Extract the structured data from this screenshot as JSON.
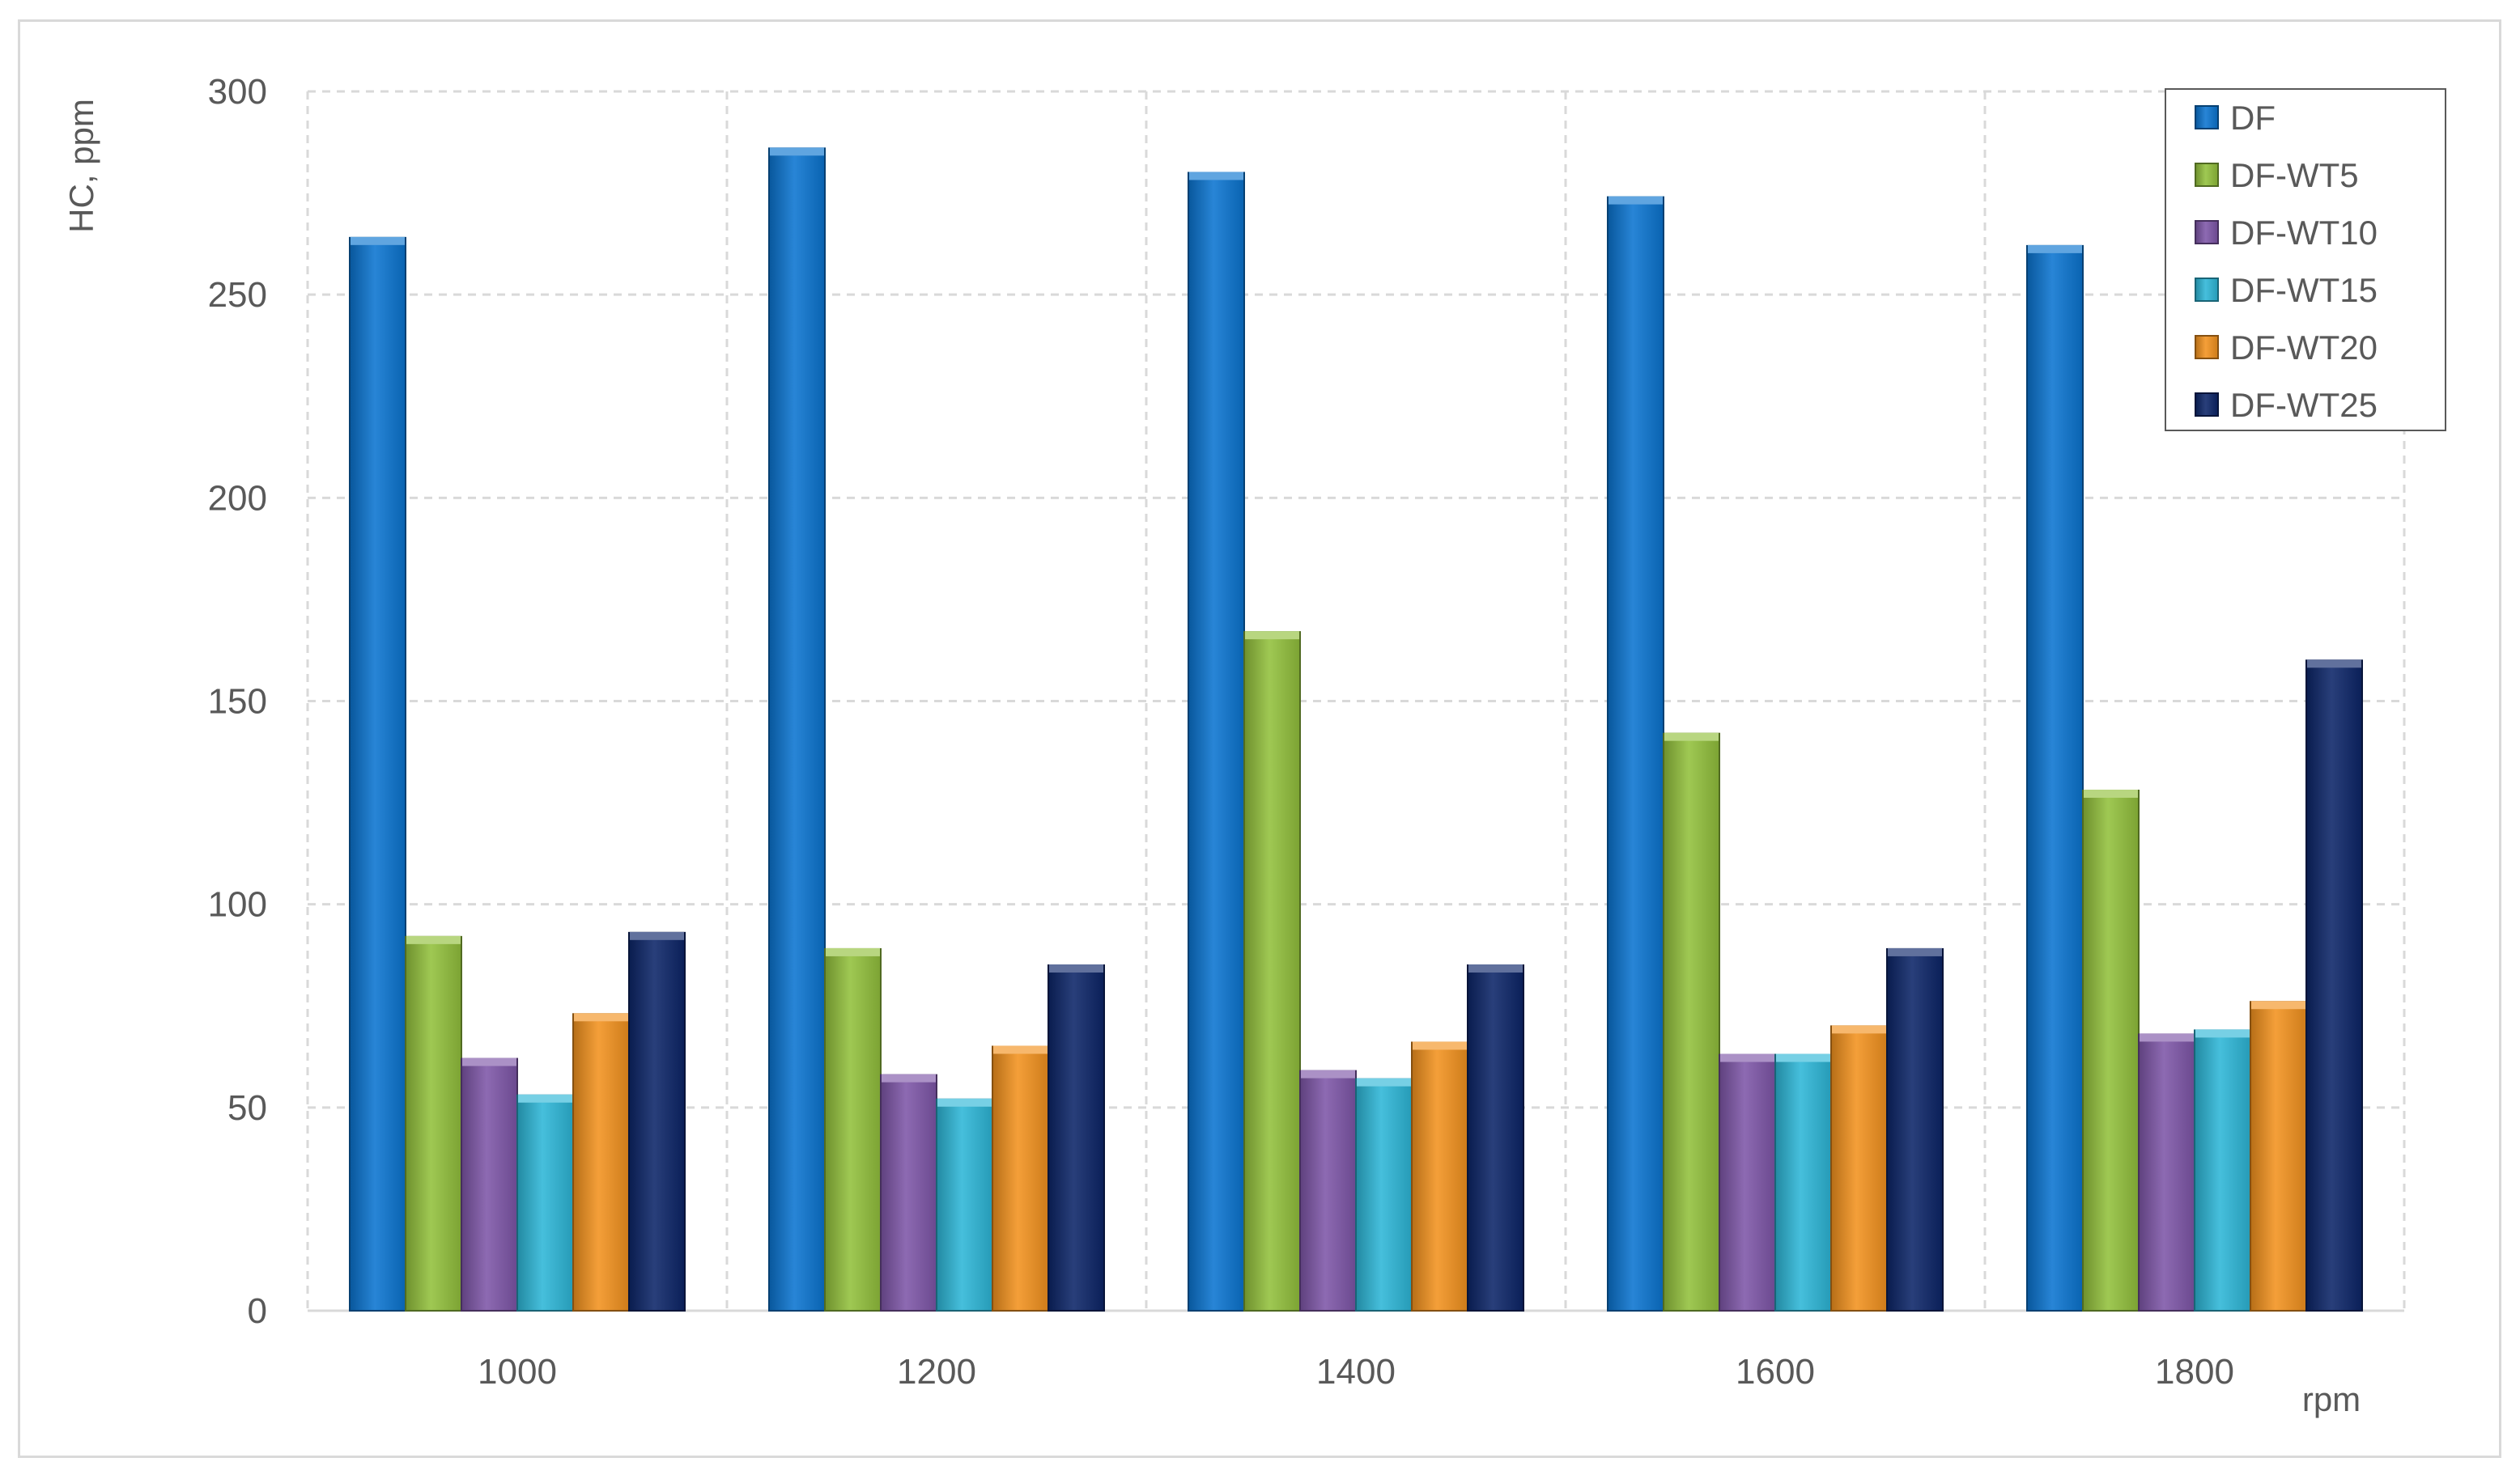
{
  "chart_data": {
    "type": "bar",
    "categories": [
      "1000",
      "1200",
      "1400",
      "1600",
      "1800"
    ],
    "series": [
      {
        "name": "DF",
        "color": "#0B74D0",
        "values": [
          264,
          286,
          280,
          274,
          262
        ]
      },
      {
        "name": "DF-WT5",
        "color": "#92C03C",
        "values": [
          92,
          89,
          167,
          142,
          128
        ]
      },
      {
        "name": "DF-WT10",
        "color": "#7E56A8",
        "values": [
          62,
          58,
          59,
          63,
          68
        ]
      },
      {
        "name": "DF-WT15",
        "color": "#2DB6D7",
        "values": [
          53,
          52,
          57,
          63,
          69
        ]
      },
      {
        "name": "DF-WT20",
        "color": "#F2921E",
        "values": [
          73,
          65,
          66,
          70,
          76
        ]
      },
      {
        "name": "DF-WT25",
        "color": "#0C2568",
        "values": [
          93,
          85,
          85,
          89,
          160
        ]
      }
    ],
    "title": "",
    "xlabel": "rpm",
    "ylabel": "HC, ppm",
    "ylim": [
      0,
      300
    ],
    "yticks": [
      0,
      50,
      100,
      150,
      200,
      250,
      300
    ],
    "grid": true,
    "legend_position": "top-right"
  }
}
